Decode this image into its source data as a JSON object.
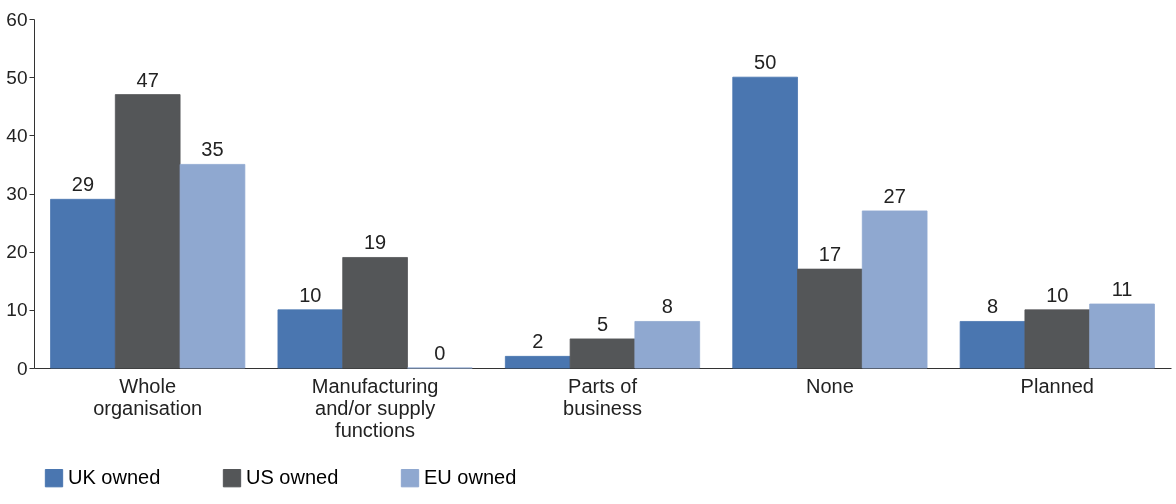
{
  "chart_data": {
    "type": "bar",
    "categories": [
      "Whole organisation",
      "Manufacturing and/or supply functions",
      "Parts of business",
      "None",
      "Planned"
    ],
    "series": [
      {
        "name": "UK owned",
        "color": "#4a76b0",
        "values": [
          29,
          10,
          2,
          50,
          8
        ]
      },
      {
        "name": "US owned",
        "color": "#545658",
        "values": [
          47,
          19,
          5,
          17,
          10
        ]
      },
      {
        "name": "EU owned",
        "color": "#8fa8d0",
        "values": [
          35,
          0,
          8,
          27,
          11
        ]
      }
    ],
    "ylim": [
      0,
      60
    ],
    "yticks": [
      0,
      10,
      20,
      30,
      40,
      50,
      60
    ],
    "grid": false,
    "legend": "bottom left",
    "data_labels": true
  }
}
